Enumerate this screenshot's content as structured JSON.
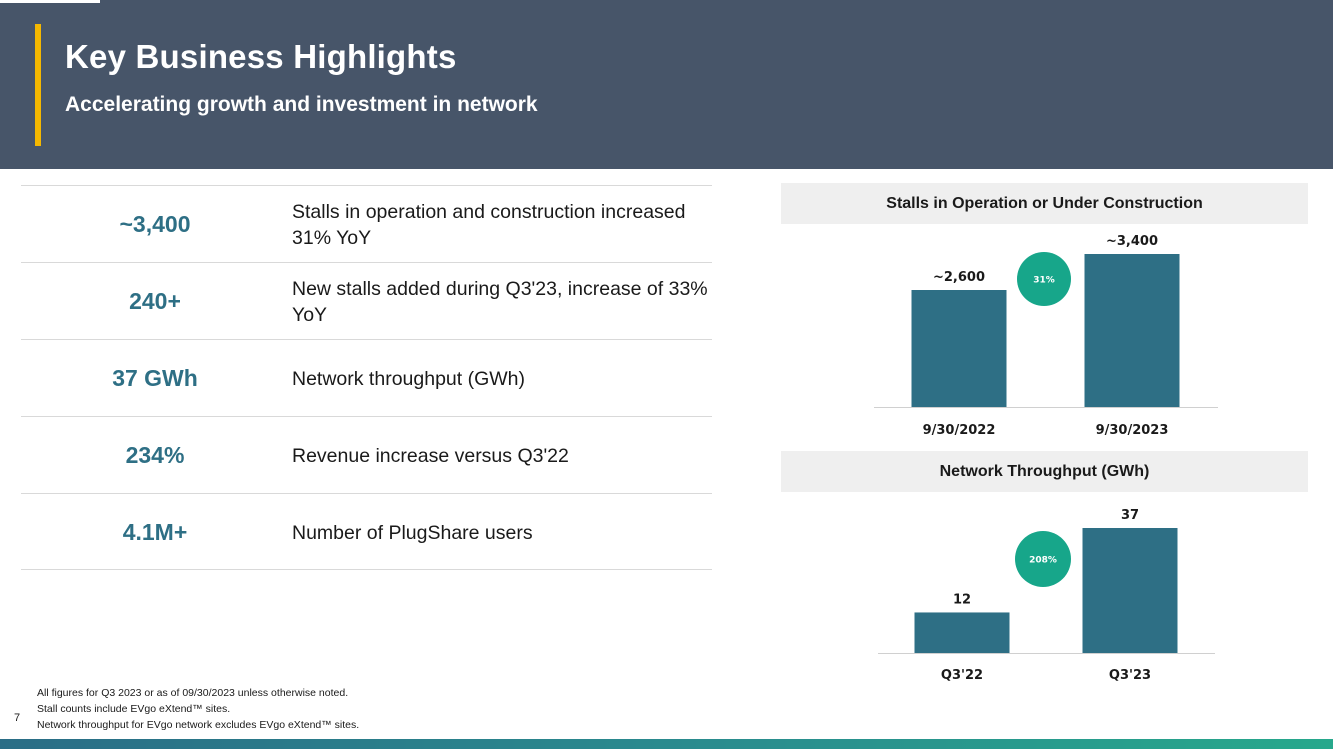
{
  "header": {
    "title": "Key Business Highlights",
    "subtitle": "Accelerating growth and investment in network"
  },
  "highlights": [
    {
      "value": "~3,400",
      "description": "Stalls in operation and construction increased 31% YoY"
    },
    {
      "value": "240+",
      "description": "New stalls added during Q3'23, increase of 33% YoY"
    },
    {
      "value": "37 GWh",
      "description": "Network throughput (GWh)"
    },
    {
      "value": "234%",
      "description": "Revenue increase versus Q3'22"
    },
    {
      "value": "4.1M+",
      "description": "Number of PlugShare users"
    }
  ],
  "colors": {
    "header_bg": "#475569",
    "accent": "#f5b800",
    "value_text": "#2e6f85",
    "bar": "#2e6f85",
    "growth_badge": "#17a68a"
  },
  "chart_data": [
    {
      "type": "bar",
      "title": "Stalls in Operation or Under Construction",
      "categories": [
        "9/30/2022",
        "9/30/2023"
      ],
      "values": [
        2600,
        3400
      ],
      "data_labels": [
        "~2,600",
        "~3,400"
      ],
      "growth_label": "31%",
      "ylim": [
        0,
        3800
      ]
    },
    {
      "type": "bar",
      "title": "Network Throughput (GWh)",
      "categories": [
        "Q3'22",
        "Q3'23"
      ],
      "values": [
        12,
        37
      ],
      "data_labels": [
        "12",
        "37"
      ],
      "growth_label": "208%",
      "ylim": [
        0,
        40
      ]
    }
  ],
  "footnotes": [
    "All figures for Q3 2023 or as of 09/30/2023 unless otherwise noted.",
    "Stall counts include EVgo eXtend™ sites.",
    "Network throughput for EVgo network excludes EVgo eXtend™ sites."
  ],
  "page_number": "7"
}
